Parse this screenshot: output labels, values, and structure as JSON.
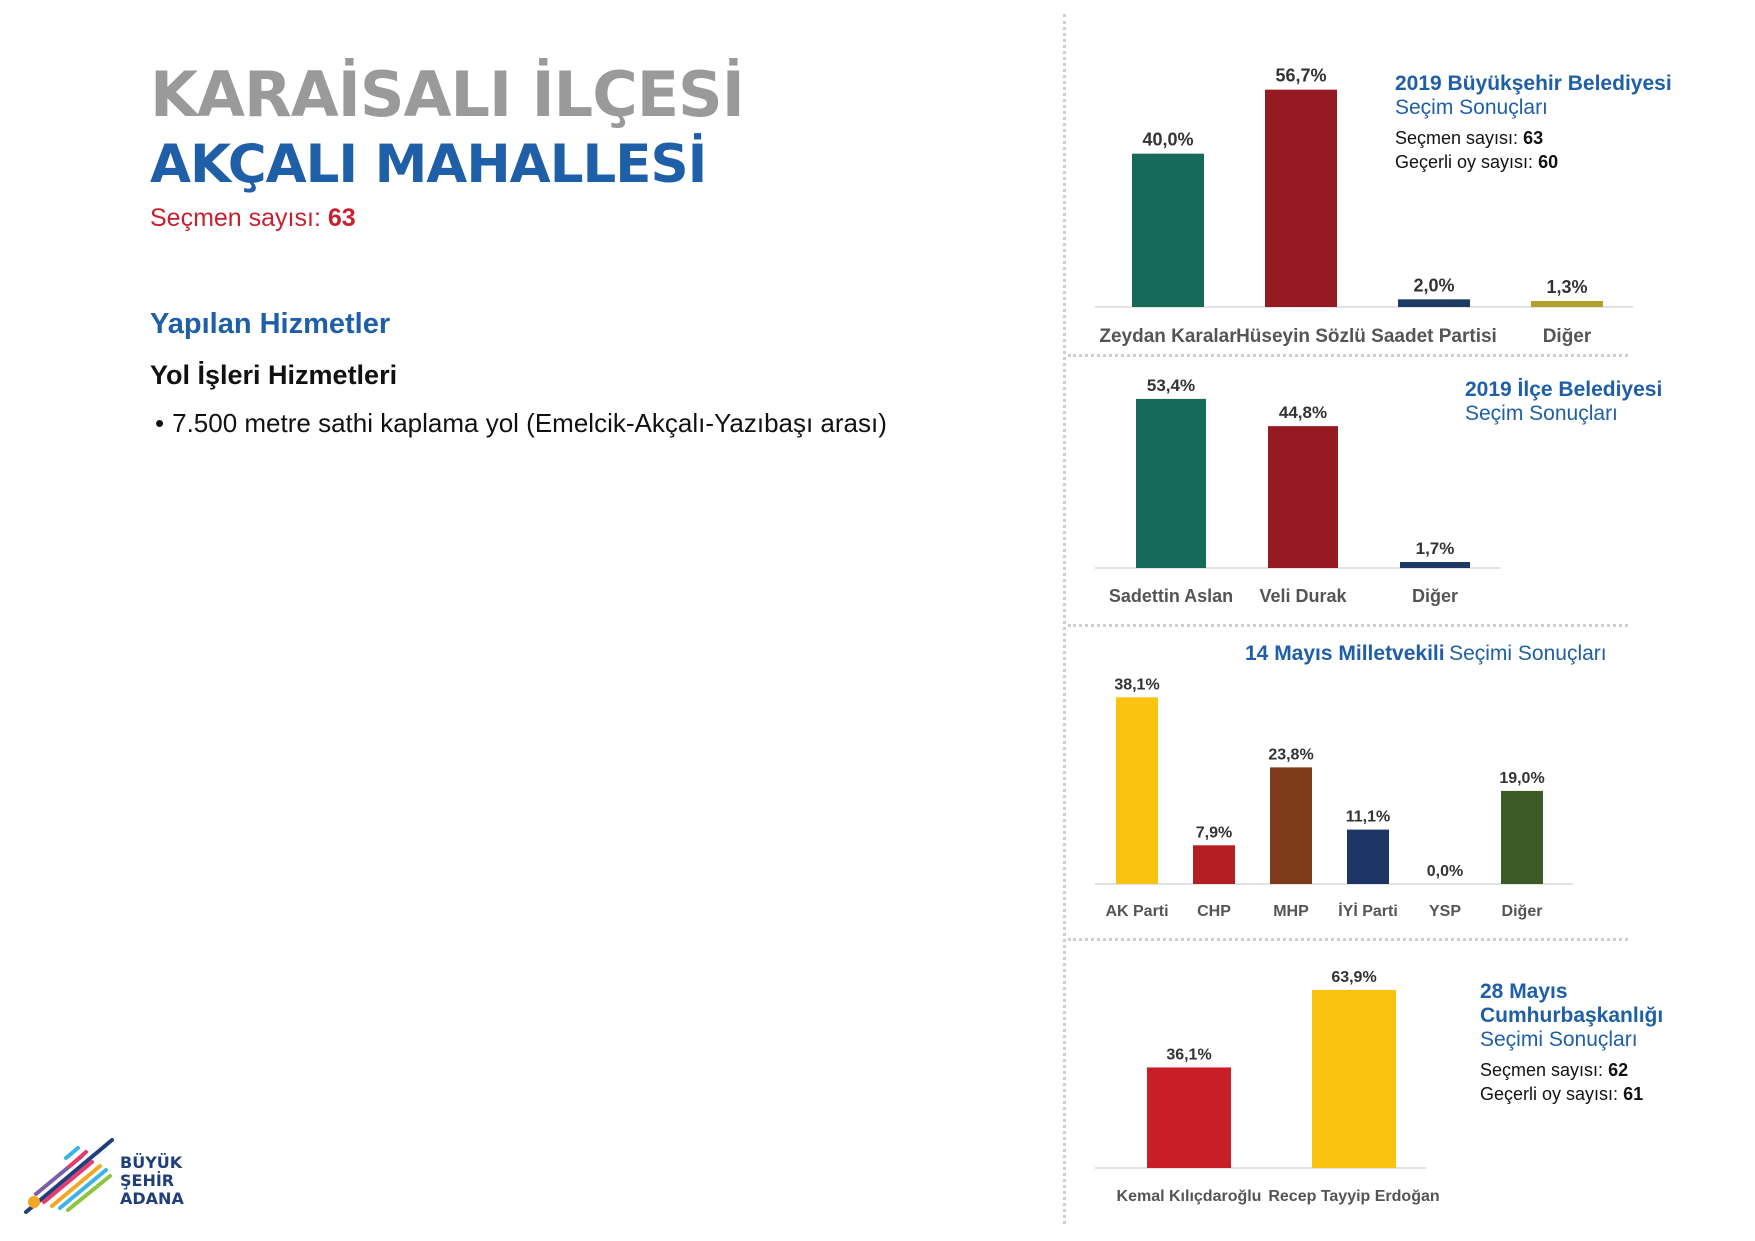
{
  "header": {
    "district": "KARAİSALI İLÇESİ",
    "neighborhood": "AKÇALI MAHALLESİ",
    "voters_label": "Seçmen sayısı:",
    "voters_value": "63"
  },
  "services": {
    "title": "Yapılan Hizmetler",
    "subtitle": "Yol İşleri Hizmetleri",
    "items": [
      "7.500 metre sathi kaplama yol (Emelcik-Akçalı-Yazıbaşı arası)"
    ]
  },
  "logo": {
    "line1": "BÜYÜK",
    "line2": "ŞEHİR",
    "line3": "ADANA"
  },
  "chart_data": [
    {
      "type": "bar",
      "title": "2019 Büyükşehir Belediyesi",
      "subtitle": "Seçim Sonuçları",
      "meta": [
        {
          "label": "Seçmen sayısı:",
          "value": "63"
        },
        {
          "label": "Geçerli oy sayısı:",
          "value": "60"
        }
      ],
      "categories": [
        "Zeydan Karalar",
        "Hüseyin Sözlü",
        "Saadet Partisi",
        "Diğer"
      ],
      "values": [
        40.0,
        56.7,
        2.0,
        1.3
      ],
      "labels": [
        "40,0%",
        "56,7%",
        "2,0%",
        "1,3%"
      ],
      "colors": [
        "#17695a",
        "#961a22",
        "#1d3a63",
        "#b3a02a"
      ],
      "ylim": [
        0,
        60
      ]
    },
    {
      "type": "bar",
      "title": "2019 İlçe Belediyesi",
      "subtitle": "Seçim Sonuçları",
      "categories": [
        "Sadettin Aslan",
        "Veli Durak",
        "Diğer"
      ],
      "values": [
        53.4,
        44.8,
        1.7
      ],
      "labels": [
        "53,4%",
        "44,8%",
        "1,7%"
      ],
      "colors": [
        "#17695a",
        "#961a22",
        "#1d3a63"
      ],
      "ylim": [
        0,
        60
      ]
    },
    {
      "type": "bar",
      "title": "14 Mayıs Milletvekili",
      "subtitle": "Seçimi Sonuçları",
      "categories": [
        "AK Parti",
        "CHP",
        "MHP",
        "İYİ Parti",
        "YSP",
        "Diğer"
      ],
      "values": [
        38.1,
        7.9,
        23.8,
        11.1,
        0.0,
        19.0
      ],
      "labels": [
        "38,1%",
        "7,9%",
        "23,8%",
        "11,1%",
        "0,0%",
        "19,0%"
      ],
      "colors": [
        "#fbc20f",
        "#b51d24",
        "#7e3b1c",
        "#1c3566",
        "#7a2f8c",
        "#3c5a26"
      ],
      "ylim": [
        0,
        40
      ]
    },
    {
      "type": "bar",
      "title": "28 Mayıs Cumhurbaşkanlığı",
      "subtitle": "Seçimi Sonuçları",
      "meta": [
        {
          "label": "Seçmen sayısı:",
          "value": "62"
        },
        {
          "label": "Geçerli oy sayısı:",
          "value": "61"
        }
      ],
      "categories": [
        "Kemal Kılıçdaroğlu",
        "Recep Tayyip Erdoğan"
      ],
      "values": [
        36.1,
        63.9
      ],
      "labels": [
        "36,1%",
        "63,9%"
      ],
      "colors": [
        "#c71e28",
        "#fbc20f"
      ],
      "ylim": [
        0,
        70
      ]
    }
  ]
}
